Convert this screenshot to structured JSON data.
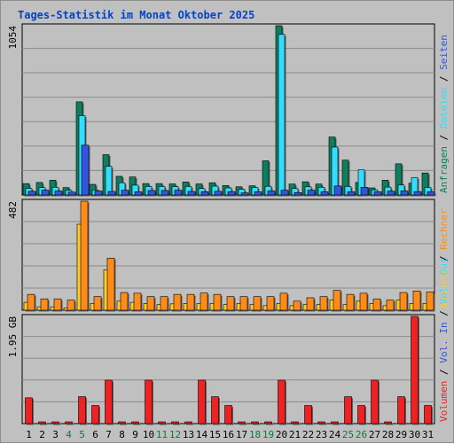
{
  "chart_data": {
    "type": "bar",
    "title": "Tages-Statistik im Monat Oktober 2025",
    "categories": [
      "1",
      "2",
      "3",
      "4",
      "5",
      "6",
      "7",
      "8",
      "9",
      "10",
      "11",
      "12",
      "13",
      "14",
      "15",
      "16",
      "17",
      "18",
      "19",
      "20",
      "21",
      "22",
      "23",
      "24",
      "25",
      "26",
      "27",
      "28",
      "29",
      "30",
      "31"
    ],
    "weekend_days": [
      "4",
      "5",
      "11",
      "12",
      "18",
      "19",
      "25",
      "26"
    ],
    "colors": {
      "title": "#0044cc",
      "background": "#c0c0c0",
      "plot_background": "#c0c0c0",
      "weekend_label": "#007f40",
      "weekday_label": "#000000",
      "anfragen": "#0d7f5f",
      "dateien": "#33ddff",
      "seiten": "#3355dd",
      "besuche": "#ffcc22",
      "rechner": "#ff8c1a",
      "volumen": "#ee2222"
    },
    "panels": [
      {
        "id": "top",
        "max_label": "1054",
        "ylim": [
          0,
          1054
        ],
        "legend": [
          {
            "label": "Anfragen",
            "color_key": "anfragen"
          },
          {
            "label": "Dateien",
            "color_key": "dateien"
          },
          {
            "label": "Seiten",
            "color_key": "seiten"
          }
        ],
        "series": [
          {
            "name": "Anfragen",
            "color_key": "anfragen",
            "values": [
              71,
              78,
              92,
              46,
              580,
              66,
              251,
              116,
              112,
              71,
              71,
              69,
              81,
              69,
              76,
              59,
              51,
              57,
              213,
              1054,
              68,
              82,
              68,
              361,
              217,
              78,
              44,
              92,
              194,
              73,
              137
            ]
          },
          {
            "name": "Dateien",
            "color_key": "dateien",
            "values": [
              41,
              46,
              48,
              29,
              494,
              31,
              178,
              76,
              61,
              53,
              53,
              52,
              53,
              40,
              55,
              44,
              35,
              46,
              54,
              1000,
              40,
              51,
              48,
              298,
              53,
              157,
              31,
              49,
              62,
              109,
              47
            ]
          },
          {
            "name": "Seiten",
            "color_key": "seiten",
            "values": [
              23,
              30,
              25,
              18,
              310,
              25,
              22,
              30,
              20,
              28,
              28,
              30,
              22,
              20,
              23,
              21,
              13,
              20,
              25,
              30,
              15,
              30,
              20,
              56,
              20,
              48,
              20,
              24,
              25,
              21,
              20
            ]
          }
        ]
      },
      {
        "id": "middle",
        "max_label": "482",
        "ylim": [
          0,
          482
        ],
        "legend": [
          {
            "label": "Besuche",
            "color_key": "besuche"
          },
          {
            "label": "Rechner",
            "color_key": "rechner"
          }
        ],
        "series": [
          {
            "name": "Besuche",
            "color_key": "besuche",
            "values": [
              35,
              15,
              15,
              10,
              380,
              30,
              178,
              40,
              35,
              30,
              25,
              28,
              30,
              30,
              30,
              25,
              30,
              25,
              20,
              30,
              20,
              25,
              25,
              45,
              25,
              40,
              30,
              20,
              45,
              30,
              30
            ]
          },
          {
            "name": "Rechner",
            "color_key": "rechner",
            "values": [
              70,
              50,
              50,
              45,
              482,
              60,
              230,
              78,
              75,
              60,
              60,
              70,
              70,
              76,
              70,
              60,
              60,
              60,
              60,
              75,
              40,
              55,
              60,
              88,
              70,
              75,
              50,
              45,
              78,
              85,
              80
            ]
          }
        ]
      },
      {
        "id": "bottom",
        "max_label": "1.95 GB",
        "ylim": [
          0,
          1.95
        ],
        "legend": [
          {
            "label": "Volumen",
            "color_key": "volumen"
          },
          {
            "label": "Vol. In",
            "color_key": "seiten"
          },
          {
            "label": "Vol. Out",
            "color_key": "dateien"
          }
        ],
        "series": [
          {
            "name": "Volumen",
            "color_key": "volumen",
            "values": [
              0.47,
              0.03,
              0.03,
              0.03,
              0.49,
              0.33,
              0.79,
              0.03,
              0.03,
              0.79,
              0.03,
              0.03,
              0.03,
              0.79,
              0.49,
              0.33,
              0.03,
              0.03,
              0.03,
              0.79,
              0.03,
              0.33,
              0.03,
              0.03,
              0.49,
              0.33,
              0.79,
              0.03,
              0.49,
              1.95,
              0.33
            ]
          }
        ]
      }
    ]
  }
}
